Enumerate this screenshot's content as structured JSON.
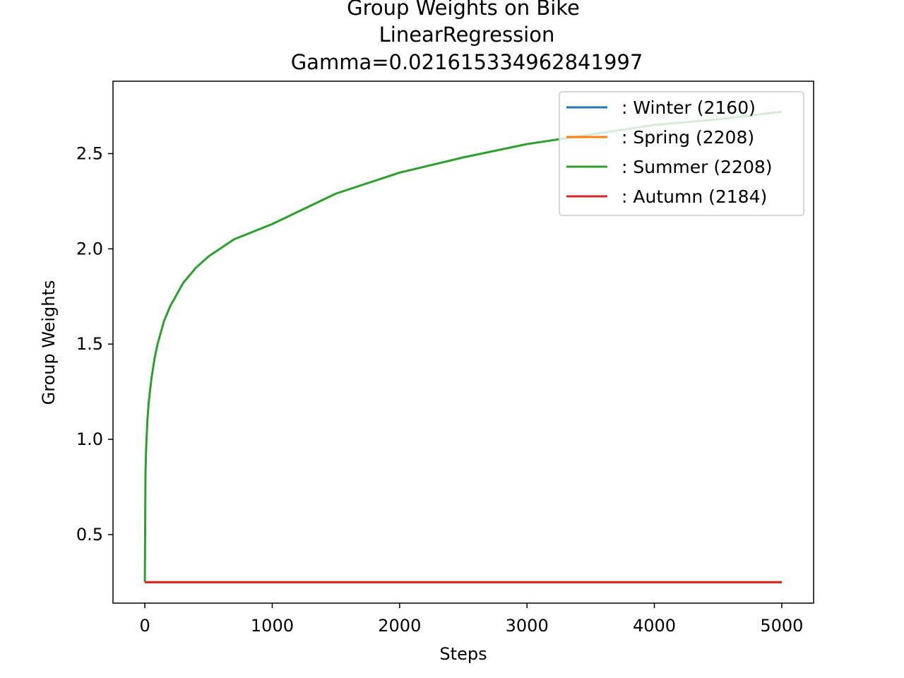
{
  "chart_data": {
    "type": "line",
    "title_lines": [
      "Group Weights on Bike",
      "LinearRegression",
      "Gamma=0.021615334962841997"
    ],
    "xlabel": "Steps",
    "ylabel": "Group Weights",
    "xlim": [
      -250,
      5250
    ],
    "ylim": [
      0.14,
      2.88
    ],
    "xticks": [
      0,
      1000,
      2000,
      3000,
      4000,
      5000
    ],
    "yticks": [
      0.5,
      1.0,
      1.5,
      2.0,
      2.5
    ],
    "ytick_labels": [
      "0.5",
      "1.0",
      "1.5",
      "2.0",
      "2.5"
    ],
    "legend_position": "top-right",
    "series": [
      {
        "name": ": Winter  (2160)",
        "color": "#1f77b4",
        "x": [
          0,
          5000
        ],
        "y": [
          0.25,
          0.25
        ]
      },
      {
        "name": ": Spring  (2208)",
        "color": "#ff7f0e",
        "x": [
          0,
          5000
        ],
        "y": [
          0.25,
          0.25
        ]
      },
      {
        "name": ": Summer  (2208)",
        "color": "#2ca02c",
        "x": [
          0,
          5,
          10,
          20,
          30,
          50,
          75,
          100,
          150,
          200,
          300,
          400,
          500,
          700,
          1000,
          1500,
          2000,
          2500,
          3000,
          3500,
          4000,
          4500,
          5000
        ],
        "y": [
          0.25,
          0.82,
          0.95,
          1.1,
          1.19,
          1.31,
          1.42,
          1.5,
          1.62,
          1.7,
          1.82,
          1.9,
          1.96,
          2.05,
          2.13,
          2.29,
          2.4,
          2.48,
          2.55,
          2.6,
          2.65,
          2.68,
          2.72
        ]
      },
      {
        "name": ": Autumn  (2184)",
        "color": "#d62728",
        "x": [
          0,
          5000
        ],
        "y": [
          0.25,
          0.25
        ]
      }
    ]
  }
}
